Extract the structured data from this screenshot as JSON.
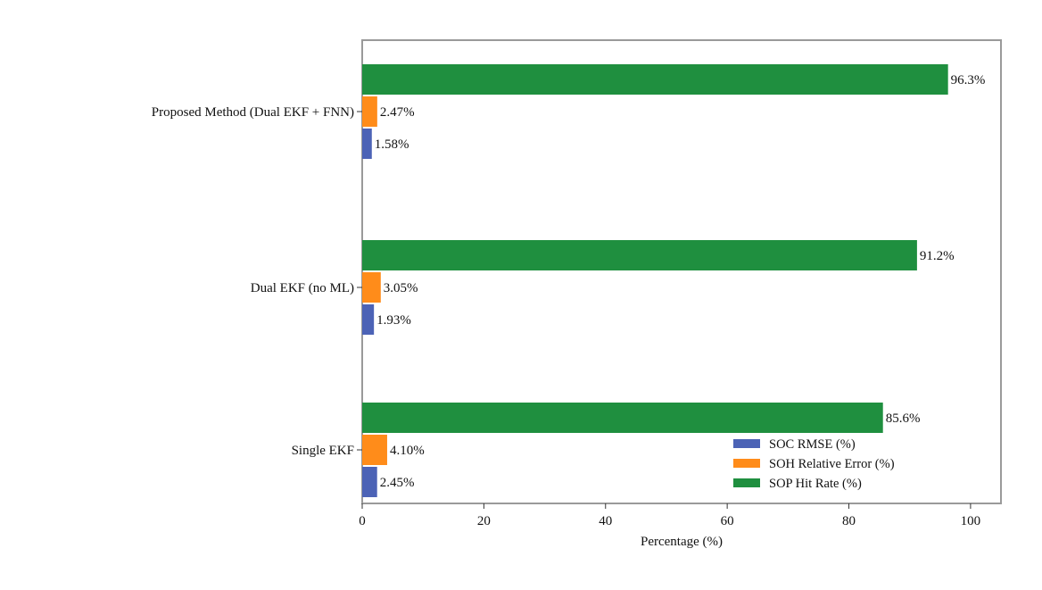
{
  "chart_data": {
    "type": "bar",
    "orientation": "horizontal",
    "title": "",
    "xlabel": "Percentage (%)",
    "ylabel": "",
    "xlim": [
      0,
      105
    ],
    "xticks": [
      0,
      20,
      40,
      60,
      80,
      100
    ],
    "categories": [
      "Single EKF",
      "Dual EKF (no ML)",
      "Proposed Method (Dual EKF + FNN)"
    ],
    "series": [
      {
        "name": "SOC RMSE (%)",
        "color": "#4c63b6",
        "values": [
          2.45,
          1.93,
          1.58
        ],
        "labels": [
          "2.45%",
          "1.93%",
          "1.58%"
        ]
      },
      {
        "name": "SOH Relative Error (%)",
        "color": "#ff8c1a",
        "values": [
          4.1,
          3.05,
          2.47
        ],
        "labels": [
          "4.10%",
          "3.05%",
          "2.47%"
        ]
      },
      {
        "name": "SOP Hit Rate (%)",
        "color": "#1f8f3f",
        "values": [
          85.6,
          91.2,
          96.3
        ],
        "labels": [
          "85.6%",
          "91.2%",
          "96.3%"
        ]
      }
    ],
    "legend_position": "lower-right",
    "grid": false
  }
}
